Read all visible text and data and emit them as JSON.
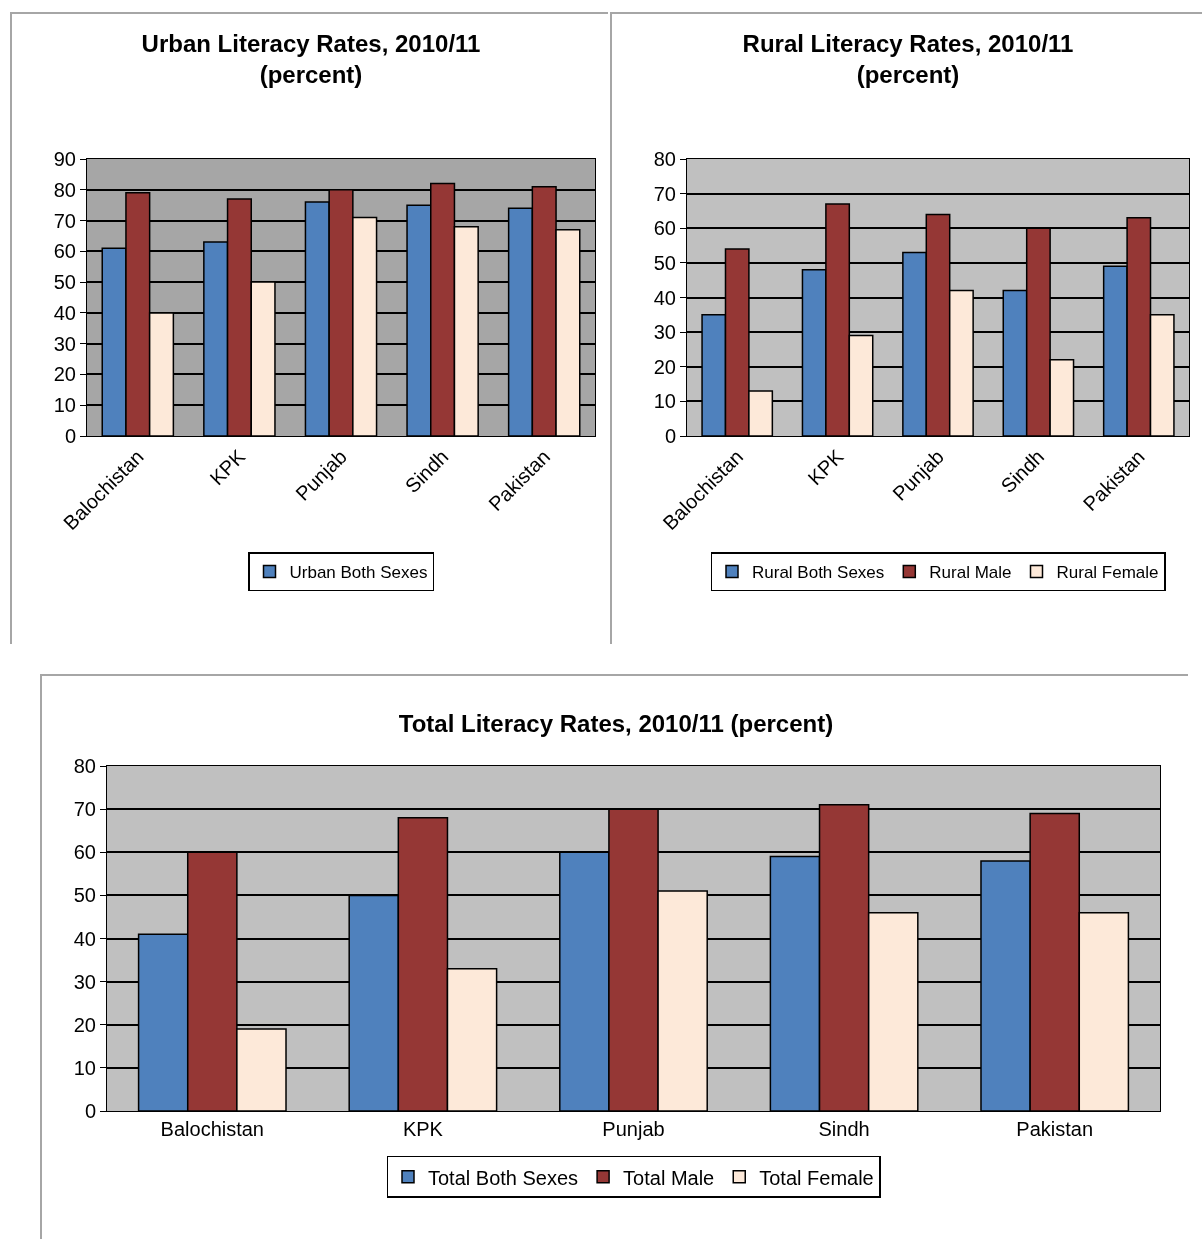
{
  "chart_data": [
    {
      "type": "bar",
      "title": "Urban Literacy Rates, 2010/11\n(percent)",
      "categories": [
        "Balochistan",
        "KPK",
        "Punjab",
        "Sindh",
        "Pakistan"
      ],
      "series": [
        {
          "name": "Urban Both Sexes",
          "color": "#4f81bd",
          "values": [
            61,
            63,
            76,
            75,
            74
          ]
        },
        {
          "color": "#953735",
          "values": [
            79,
            77,
            80,
            82,
            81
          ]
        },
        {
          "color": "#fde9d9",
          "values": [
            40,
            50,
            71,
            68,
            67
          ]
        }
      ],
      "ylim": [
        0,
        90
      ],
      "yticks": [
        0,
        10,
        20,
        30,
        40,
        50,
        60,
        70,
        80,
        90
      ],
      "grid": "y",
      "legend": "bottom"
    },
    {
      "type": "bar",
      "title": "Rural Literacy Rates, 2010/11\n(percent)",
      "categories": [
        "Balochistan",
        "KPK",
        "Punjab",
        "Sindh",
        "Pakistan"
      ],
      "series": [
        {
          "name": "Rural Both Sexes",
          "color": "#4f81bd",
          "values": [
            35,
            48,
            53,
            42,
            49
          ]
        },
        {
          "name": "Rural Male",
          "color": "#953735",
          "values": [
            54,
            67,
            64,
            60,
            63
          ]
        },
        {
          "name": "Rural Female",
          "color": "#fde9d9",
          "values": [
            13,
            29,
            42,
            22,
            35
          ]
        }
      ],
      "ylim": [
        0,
        80
      ],
      "yticks": [
        0,
        10,
        20,
        30,
        40,
        50,
        60,
        70,
        80
      ],
      "grid": "y",
      "legend": "bottom"
    },
    {
      "type": "bar",
      "title": "Total Literacy Rates, 2010/11 (percent)",
      "categories": [
        "Balochistan",
        "KPK",
        "Punjab",
        "Sindh",
        "Pakistan"
      ],
      "series": [
        {
          "name": "Total Both Sexes",
          "color": "#4f81bd",
          "values": [
            41,
            50,
            60,
            59,
            58
          ]
        },
        {
          "name": "Total Male",
          "color": "#953735",
          "values": [
            60,
            68,
            70,
            71,
            69
          ]
        },
        {
          "name": "Total Female",
          "color": "#fde9d9",
          "values": [
            19,
            33,
            51,
            46,
            46
          ]
        }
      ],
      "ylim": [
        0,
        80
      ],
      "yticks": [
        0,
        10,
        20,
        30,
        40,
        50,
        60,
        70,
        80
      ],
      "grid": "y",
      "legend": "bottom"
    }
  ]
}
